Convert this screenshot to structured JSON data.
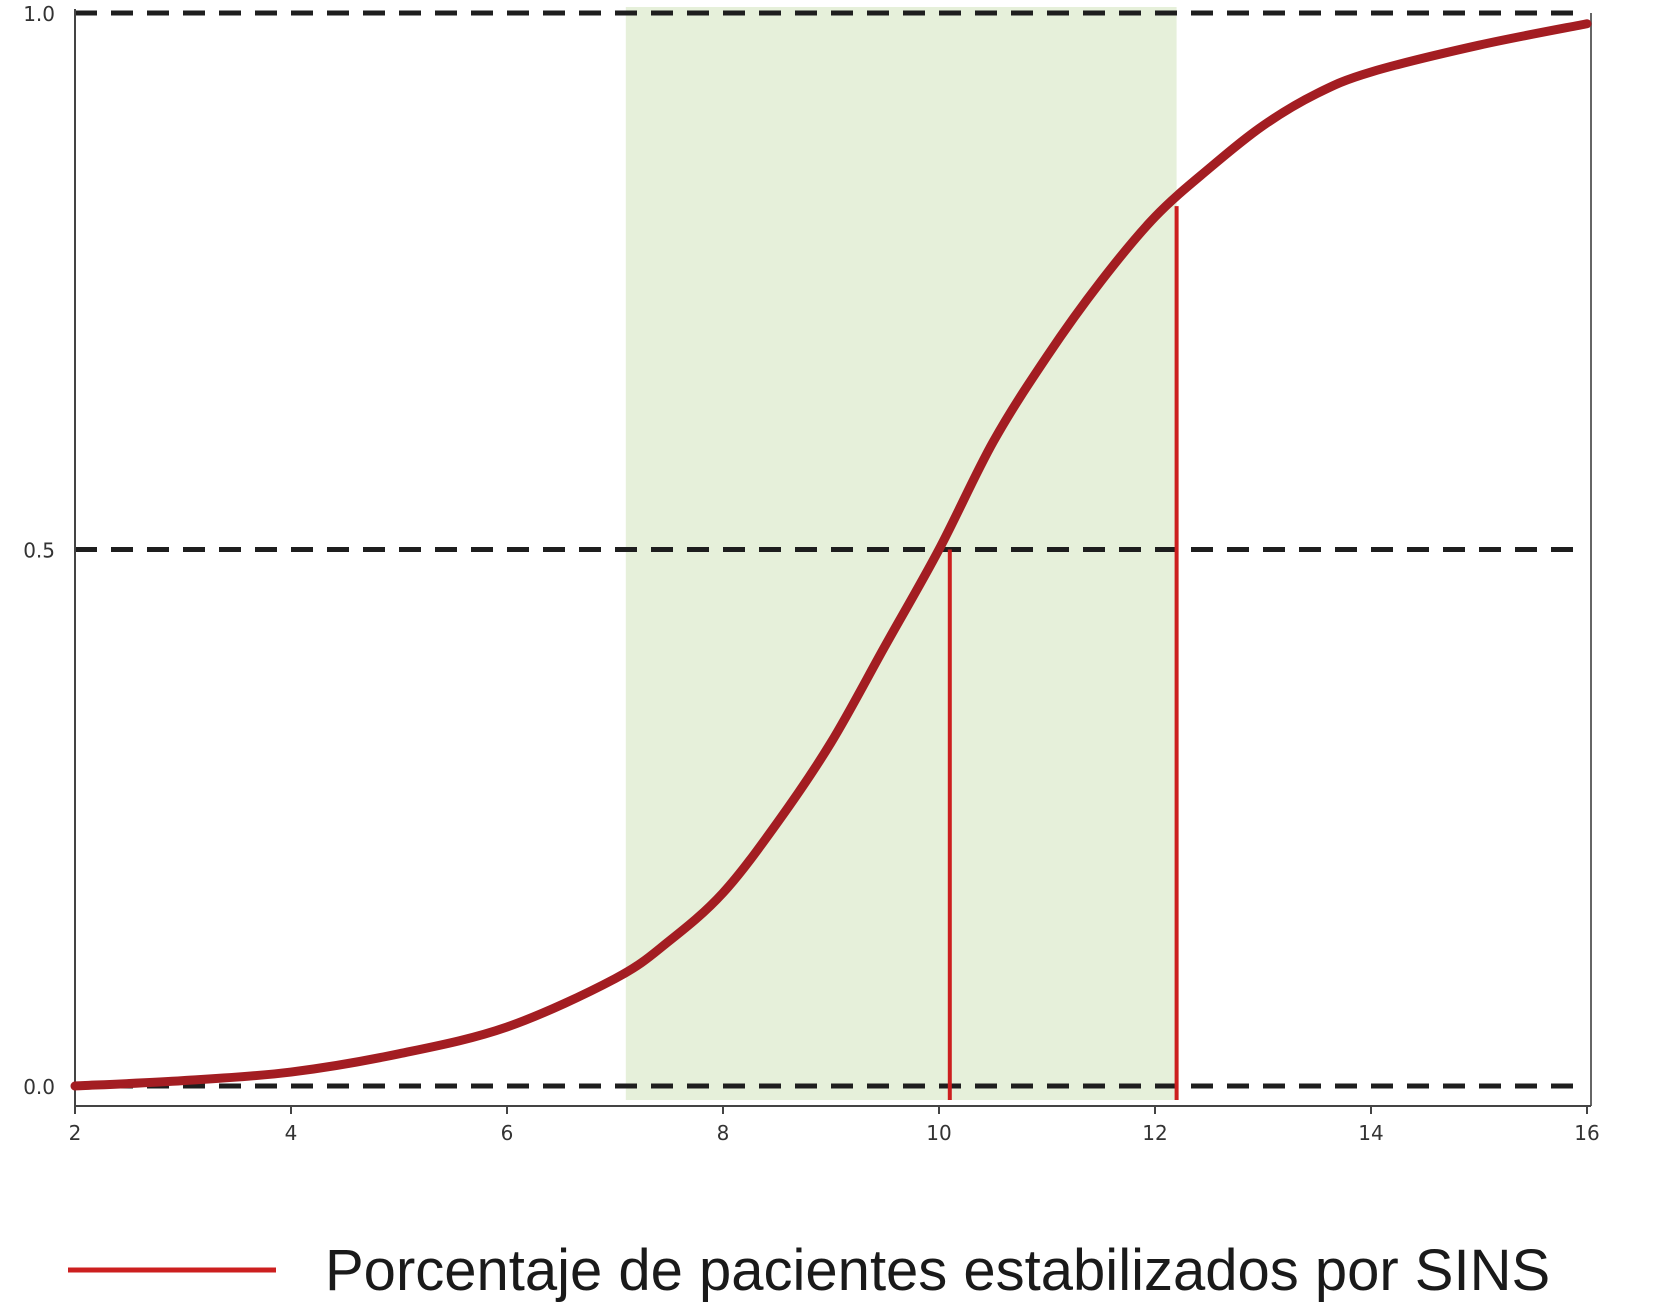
{
  "chart_data": {
    "type": "line",
    "title": "",
    "xlabel": "",
    "ylabel": "",
    "xlim": [
      2,
      16
    ],
    "ylim": [
      0.0,
      1.0
    ],
    "x_ticks": [
      2,
      4,
      6,
      8,
      10,
      12,
      14,
      16
    ],
    "x_tick_labels": [
      "2",
      "4",
      "6",
      "8",
      "10",
      "12",
      "14",
      "16"
    ],
    "y_ticks": [
      0.0,
      0.5,
      1.0
    ],
    "y_tick_labels": [
      "0.0",
      "0.5",
      "1.0"
    ],
    "grid": "dashed horizontal at 0.0, 0.5 and 1.0",
    "shaded_region": {
      "x": [
        7.1,
        12.2
      ],
      "color": "#e6f0da"
    },
    "reference_lines": [
      {
        "x": 10.1,
        "y": [
          0.0,
          0.5
        ],
        "color": "#cc1f1f"
      },
      {
        "x": 12.2,
        "y": [
          0.0,
          0.82
        ],
        "color": "#cc1f1f"
      }
    ],
    "series": [
      {
        "name": "Porcentaje de pacientes estabilizados por SINS",
        "color": "#a31d22",
        "x": [
          2,
          3,
          4,
          5,
          6,
          7,
          7.5,
          8,
          8.5,
          9,
          9.5,
          10,
          10.5,
          11,
          11.5,
          12,
          12.5,
          13,
          13.5,
          14,
          15,
          16
        ],
        "y": [
          0.0,
          0.005,
          0.013,
          0.03,
          0.055,
          0.1,
          0.135,
          0.18,
          0.245,
          0.32,
          0.41,
          0.5,
          0.6,
          0.68,
          0.75,
          0.81,
          0.855,
          0.895,
          0.925,
          0.945,
          0.97,
          0.99
        ]
      }
    ],
    "legend": {
      "placement": "bottom",
      "label": "Porcentaje de pacientes estabilizados por SINS",
      "color": "#cc1f1f"
    }
  }
}
